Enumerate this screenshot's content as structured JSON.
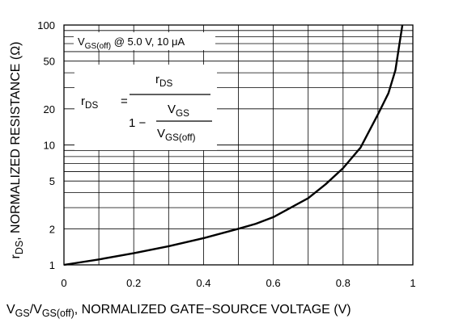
{
  "chart_data": {
    "type": "line",
    "xlabel": {
      "parts": [
        {
          "t": "V"
        },
        {
          "t": "GS",
          "sub": true
        },
        {
          "t": "/V"
        },
        {
          "t": "GS(off)",
          "sub": true
        },
        {
          "t": ", NORMALIZED GATE−SOURCE VOLTAGE (V)"
        }
      ]
    },
    "ylabel": {
      "parts": [
        {
          "t": "r"
        },
        {
          "t": "DS",
          "sub": true
        },
        {
          "t": ", NORMALIZED RESISTANCE (Ω)"
        }
      ]
    },
    "xlim": [
      0,
      1
    ],
    "ylim": [
      1,
      100
    ],
    "yscale": "log",
    "grid": true,
    "x_ticks": [
      {
        "v": 0,
        "label": "0"
      },
      {
        "v": 0.2,
        "label": "0.2"
      },
      {
        "v": 0.4,
        "label": "0.4"
      },
      {
        "v": 0.6,
        "label": "0.6"
      },
      {
        "v": 0.8,
        "label": "0.8"
      },
      {
        "v": 1,
        "label": "1"
      }
    ],
    "y_ticks": [
      {
        "v": 1,
        "label": "1"
      },
      {
        "v": 2,
        "label": "2"
      },
      {
        "v": 5,
        "label": "5"
      },
      {
        "v": 10,
        "label": "10"
      },
      {
        "v": 20,
        "label": "20"
      },
      {
        "v": 50,
        "label": "50"
      },
      {
        "v": 100,
        "label": "100"
      }
    ],
    "condition_label": {
      "parts": [
        {
          "t": "V"
        },
        {
          "t": "GS(off)",
          "sub": true
        },
        {
          "t": " @ 5.0 V, 10 μA"
        }
      ]
    },
    "formula": {
      "lhs": "r",
      "lhs_sub": "DS",
      "equals": "=",
      "numerator": "r",
      "numerator_sub": "DS",
      "one_minus": "1 −",
      "inner_num": "V",
      "inner_num_sub": "GS",
      "inner_den": "V",
      "inner_den_sub": "GS(off)"
    },
    "series": [
      {
        "x": [
          0,
          0.1,
          0.2,
          0.3,
          0.4,
          0.5,
          0.55,
          0.6,
          0.65,
          0.7,
          0.75,
          0.8,
          0.85,
          0.9,
          0.93,
          0.95,
          0.96,
          0.97
        ],
        "y": [
          1.0,
          1.11,
          1.25,
          1.43,
          1.67,
          2.0,
          2.2,
          2.5,
          3.0,
          3.6,
          4.7,
          6.4,
          9.5,
          18,
          27,
          42,
          65,
          100
        ]
      }
    ]
  }
}
